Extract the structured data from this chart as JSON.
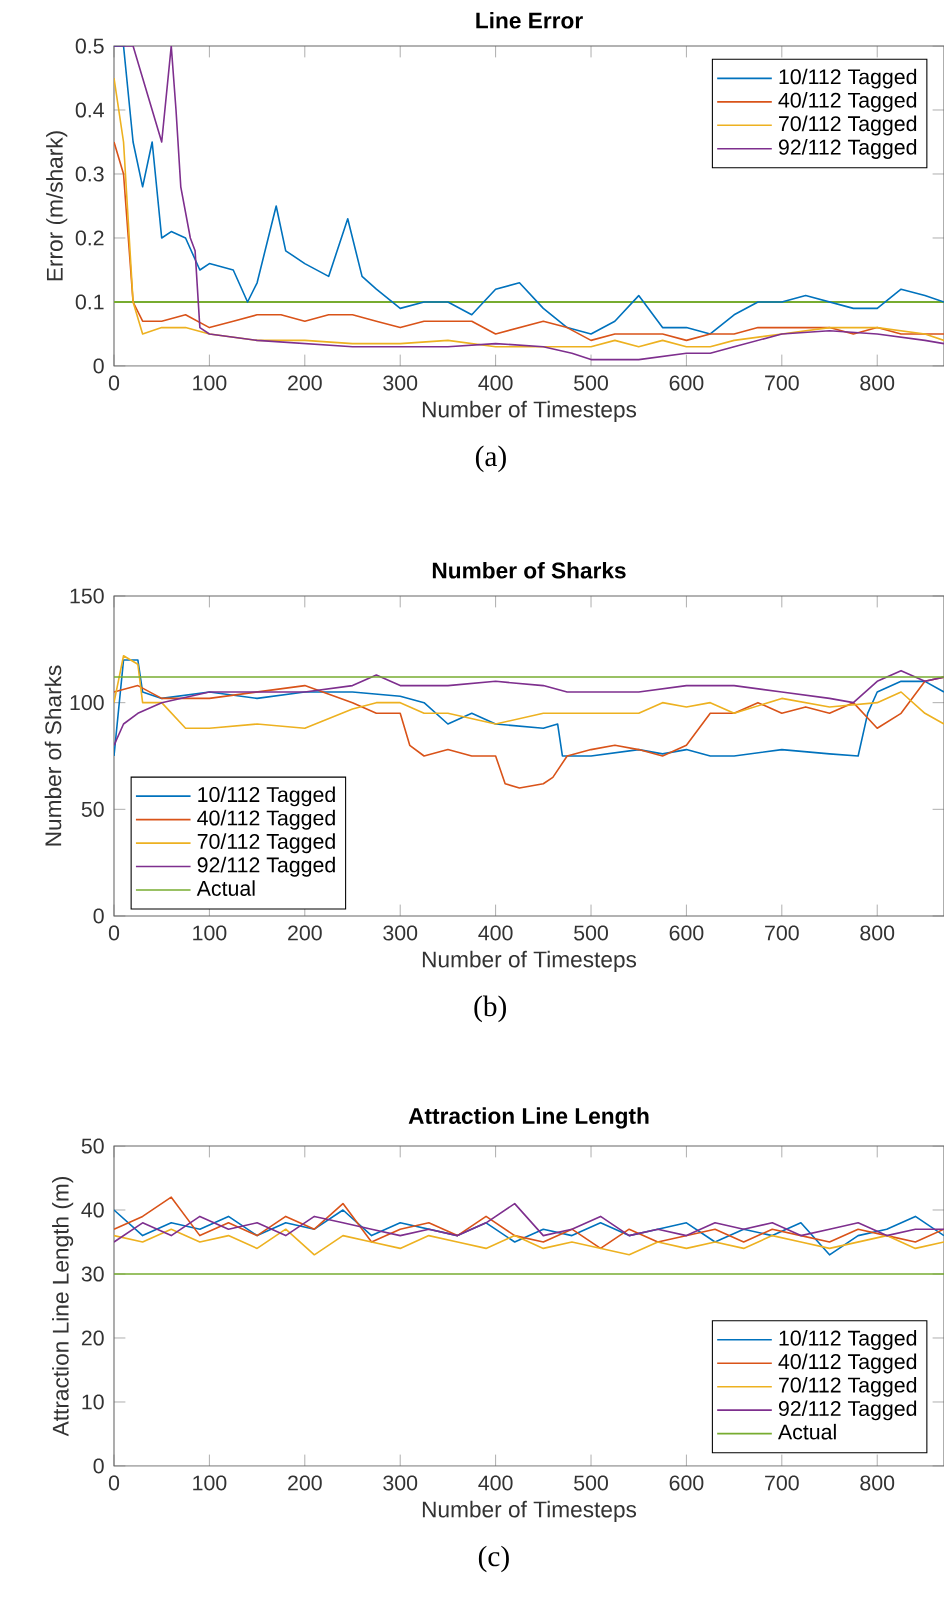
{
  "chart_data": [
    {
      "type": "line",
      "title": "Line Error",
      "xlabel": "Number of Timesteps",
      "ylabel": "Error (m/shark)",
      "xlim": [
        0,
        870
      ],
      "ylim": [
        0,
        0.5
      ],
      "xticks": [
        0,
        100,
        200,
        300,
        400,
        500,
        600,
        700,
        800
      ],
      "yticks": [
        0,
        0.1,
        0.2,
        0.3,
        0.4,
        0.5
      ],
      "legend": "top right",
      "annotations": [
        "(a)"
      ],
      "ref_lines": [
        {
          "axis": "y",
          "value": 0.1,
          "color": "#77ac30"
        }
      ],
      "series": [
        {
          "name": "10/112 Tagged",
          "color": "#0072bd",
          "x": [
            0,
            10,
            20,
            30,
            40,
            50,
            60,
            75,
            90,
            100,
            125,
            140,
            150,
            170,
            180,
            200,
            225,
            245,
            260,
            275,
            300,
            325,
            350,
            375,
            400,
            425,
            450,
            475,
            500,
            525,
            550,
            575,
            600,
            625,
            650,
            675,
            700,
            725,
            750,
            775,
            800,
            825,
            850,
            870
          ],
          "values": [
            0.5,
            0.5,
            0.35,
            0.28,
            0.35,
            0.2,
            0.21,
            0.2,
            0.15,
            0.16,
            0.15,
            0.1,
            0.13,
            0.25,
            0.18,
            0.16,
            0.14,
            0.23,
            0.14,
            0.12,
            0.09,
            0.1,
            0.1,
            0.08,
            0.12,
            0.13,
            0.09,
            0.06,
            0.05,
            0.07,
            0.11,
            0.06,
            0.06,
            0.05,
            0.08,
            0.1,
            0.1,
            0.11,
            0.1,
            0.09,
            0.09,
            0.12,
            0.11,
            0.1
          ]
        },
        {
          "name": "40/112 Tagged",
          "color": "#d95319",
          "x": [
            0,
            10,
            20,
            30,
            50,
            75,
            100,
            125,
            150,
            175,
            200,
            225,
            250,
            275,
            300,
            325,
            350,
            375,
            400,
            425,
            450,
            475,
            500,
            525,
            550,
            575,
            600,
            625,
            650,
            675,
            700,
            725,
            750,
            775,
            800,
            825,
            850,
            870
          ],
          "values": [
            0.35,
            0.3,
            0.1,
            0.07,
            0.07,
            0.08,
            0.06,
            0.07,
            0.08,
            0.08,
            0.07,
            0.08,
            0.08,
            0.07,
            0.06,
            0.07,
            0.07,
            0.07,
            0.05,
            0.06,
            0.07,
            0.06,
            0.04,
            0.05,
            0.05,
            0.05,
            0.04,
            0.05,
            0.05,
            0.06,
            0.06,
            0.06,
            0.06,
            0.05,
            0.06,
            0.05,
            0.05,
            0.05
          ]
        },
        {
          "name": "70/112 Tagged",
          "color": "#edb120",
          "x": [
            0,
            10,
            20,
            30,
            50,
            75,
            100,
            150,
            200,
            250,
            300,
            350,
            400,
            450,
            475,
            500,
            525,
            550,
            575,
            600,
            625,
            650,
            700,
            750,
            800,
            850,
            870
          ],
          "values": [
            0.45,
            0.35,
            0.1,
            0.05,
            0.06,
            0.06,
            0.05,
            0.04,
            0.04,
            0.035,
            0.035,
            0.04,
            0.03,
            0.03,
            0.03,
            0.03,
            0.04,
            0.03,
            0.04,
            0.03,
            0.03,
            0.04,
            0.05,
            0.06,
            0.06,
            0.05,
            0.04
          ]
        },
        {
          "name": "92/112 Tagged",
          "color": "#7e2f8e",
          "x": [
            0,
            20,
            30,
            40,
            50,
            60,
            65,
            70,
            80,
            85,
            90,
            100,
            150,
            200,
            250,
            300,
            350,
            400,
            450,
            480,
            500,
            550,
            575,
            600,
            625,
            650,
            700,
            750,
            800,
            850,
            870
          ],
          "values": [
            0.5,
            0.5,
            0.45,
            0.4,
            0.35,
            0.5,
            0.4,
            0.28,
            0.2,
            0.18,
            0.06,
            0.05,
            0.04,
            0.035,
            0.03,
            0.03,
            0.03,
            0.035,
            0.03,
            0.02,
            0.01,
            0.01,
            0.015,
            0.02,
            0.02,
            0.03,
            0.05,
            0.055,
            0.05,
            0.04,
            0.035
          ]
        }
      ]
    },
    {
      "type": "line",
      "title": "Number of Sharks",
      "xlabel": "Number of Timesteps",
      "ylabel": "Number of Sharks",
      "xlim": [
        0,
        870
      ],
      "ylim": [
        0,
        150
      ],
      "xticks": [
        0,
        100,
        200,
        300,
        400,
        500,
        600,
        700,
        800
      ],
      "yticks": [
        0,
        50,
        100,
        150
      ],
      "legend": "bottom left",
      "annotations": [
        "(b)"
      ],
      "series": [
        {
          "name": "10/112 Tagged",
          "color": "#0072bd",
          "x": [
            0,
            10,
            25,
            30,
            50,
            100,
            150,
            200,
            250,
            300,
            325,
            350,
            375,
            400,
            450,
            465,
            470,
            500,
            550,
            575,
            600,
            625,
            650,
            700,
            750,
            780,
            790,
            800,
            825,
            850,
            870
          ],
          "values": [
            75,
            120,
            120,
            105,
            102,
            105,
            102,
            105,
            105,
            103,
            100,
            90,
            95,
            90,
            88,
            90,
            75,
            75,
            78,
            76,
            78,
            75,
            75,
            78,
            76,
            75,
            95,
            105,
            110,
            110,
            105
          ]
        },
        {
          "name": "40/112 Tagged",
          "color": "#d95319",
          "x": [
            0,
            25,
            50,
            100,
            150,
            200,
            250,
            275,
            300,
            310,
            325,
            350,
            375,
            400,
            410,
            425,
            450,
            460,
            475,
            500,
            525,
            550,
            575,
            600,
            625,
            650,
            675,
            700,
            725,
            750,
            775,
            800,
            825,
            850,
            870
          ],
          "values": [
            105,
            108,
            102,
            102,
            105,
            108,
            100,
            95,
            95,
            80,
            75,
            78,
            75,
            75,
            62,
            60,
            62,
            65,
            75,
            78,
            80,
            78,
            75,
            80,
            95,
            95,
            100,
            95,
            98,
            95,
            100,
            88,
            95,
            110,
            112
          ]
        },
        {
          "name": "70/112 Tagged",
          "color": "#edb120",
          "x": [
            0,
            10,
            25,
            30,
            50,
            75,
            100,
            150,
            200,
            250,
            275,
            300,
            325,
            350,
            400,
            450,
            500,
            550,
            575,
            600,
            625,
            650,
            700,
            750,
            800,
            825,
            850,
            870
          ],
          "values": [
            100,
            122,
            118,
            100,
            100,
            88,
            88,
            90,
            88,
            97,
            100,
            100,
            95,
            95,
            90,
            95,
            95,
            95,
            100,
            98,
            100,
            95,
            102,
            98,
            100,
            105,
            95,
            90
          ]
        },
        {
          "name": "92/112 Tagged",
          "color": "#7e2f8e",
          "x": [
            0,
            10,
            25,
            50,
            100,
            150,
            200,
            250,
            275,
            300,
            350,
            400,
            450,
            475,
            500,
            550,
            600,
            650,
            700,
            750,
            775,
            800,
            825,
            850,
            870
          ],
          "values": [
            80,
            90,
            95,
            100,
            105,
            105,
            105,
            108,
            113,
            108,
            108,
            110,
            108,
            105,
            105,
            105,
            108,
            108,
            105,
            102,
            100,
            110,
            115,
            110,
            112
          ]
        },
        {
          "name": "Actual",
          "color": "#77ac30",
          "x": [
            0,
            870
          ],
          "values": [
            112,
            112
          ]
        }
      ]
    },
    {
      "type": "line",
      "title": "Attraction Line Length",
      "xlabel": "Number of Timesteps",
      "ylabel": "Attraction Line Length (m)",
      "xlim": [
        0,
        870
      ],
      "ylim": [
        0,
        50
      ],
      "xticks": [
        0,
        100,
        200,
        300,
        400,
        500,
        600,
        700,
        800
      ],
      "yticks": [
        0,
        10,
        20,
        30,
        40,
        50
      ],
      "legend": "bottom right",
      "annotations": [
        "(c)"
      ],
      "series": [
        {
          "name": "10/112 Tagged",
          "color": "#0072bd",
          "x": [
            0,
            30,
            60,
            90,
            120,
            150,
            180,
            210,
            240,
            270,
            300,
            330,
            360,
            390,
            420,
            450,
            480,
            510,
            540,
            570,
            600,
            630,
            660,
            690,
            720,
            750,
            780,
            810,
            840,
            870
          ],
          "values": [
            40,
            36,
            38,
            37,
            39,
            36,
            38,
            37,
            40,
            36,
            38,
            37,
            36,
            38,
            35,
            37,
            36,
            38,
            36,
            37,
            38,
            35,
            37,
            36,
            38,
            33,
            36,
            37,
            39,
            36
          ]
        },
        {
          "name": "40/112 Tagged",
          "color": "#d95319",
          "x": [
            0,
            30,
            60,
            90,
            120,
            150,
            180,
            210,
            240,
            270,
            300,
            330,
            360,
            390,
            420,
            450,
            480,
            510,
            540,
            570,
            600,
            630,
            660,
            690,
            720,
            750,
            780,
            810,
            840,
            870
          ],
          "values": [
            37,
            39,
            42,
            36,
            38,
            36,
            39,
            37,
            41,
            35,
            37,
            38,
            36,
            39,
            36,
            35,
            37,
            34,
            37,
            35,
            36,
            37,
            35,
            37,
            36,
            35,
            37,
            36,
            35,
            37
          ]
        },
        {
          "name": "70/112 Tagged",
          "color": "#edb120",
          "x": [
            0,
            30,
            60,
            90,
            120,
            150,
            180,
            210,
            240,
            270,
            300,
            330,
            360,
            390,
            420,
            450,
            480,
            510,
            540,
            570,
            600,
            630,
            660,
            690,
            720,
            750,
            780,
            810,
            840,
            870
          ],
          "values": [
            36,
            35,
            37,
            35,
            36,
            34,
            37,
            33,
            36,
            35,
            34,
            36,
            35,
            34,
            36,
            34,
            35,
            34,
            33,
            35,
            34,
            35,
            34,
            36,
            35,
            34,
            35,
            36,
            34,
            35
          ]
        },
        {
          "name": "92/112 Tagged",
          "color": "#7e2f8e",
          "x": [
            0,
            30,
            60,
            90,
            120,
            150,
            180,
            210,
            240,
            270,
            300,
            330,
            360,
            390,
            420,
            450,
            480,
            510,
            540,
            570,
            600,
            630,
            660,
            690,
            720,
            750,
            780,
            810,
            840,
            870
          ],
          "values": [
            35,
            38,
            36,
            39,
            37,
            38,
            36,
            39,
            38,
            37,
            36,
            37,
            36,
            38,
            41,
            36,
            37,
            39,
            36,
            37,
            36,
            38,
            37,
            38,
            36,
            37,
            38,
            36,
            37,
            37
          ]
        },
        {
          "name": "Actual",
          "color": "#77ac30",
          "x": [
            0,
            870
          ],
          "values": [
            30,
            30
          ]
        }
      ]
    }
  ]
}
